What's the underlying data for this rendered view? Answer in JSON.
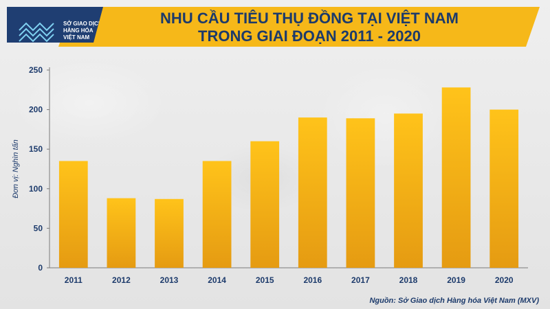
{
  "header": {
    "logo_lines": [
      "SỞ GIAO DỊCH",
      "HÀNG HÓA",
      "VIỆT NAM"
    ],
    "title_line1": "NHU CẦU TIÊU THỤ ĐỒNG TẠI VIỆT NAM",
    "title_line2": "TRONG GIAI ĐOẠN 2011 - 2020",
    "accent_color": "#f6b819",
    "brand_color": "#1f3e72"
  },
  "chart_data": {
    "type": "bar",
    "categories": [
      "2011",
      "2012",
      "2013",
      "2014",
      "2015",
      "2016",
      "2017",
      "2018",
      "2019",
      "2020"
    ],
    "values": [
      135,
      88,
      87,
      135,
      160,
      190,
      189,
      195,
      228,
      200
    ],
    "ylabel": "Đơn vị: Nghìn tấn",
    "ylim": [
      0,
      250
    ],
    "yticks": [
      0,
      50,
      100,
      150,
      200,
      250
    ],
    "grid": false,
    "bar_color_top": "#ffc31a",
    "bar_color_bottom": "#e59b12"
  },
  "footer": {
    "source": "Nguồn: Sở Giao dịch Hàng hóa Việt Nam (MXV)"
  }
}
